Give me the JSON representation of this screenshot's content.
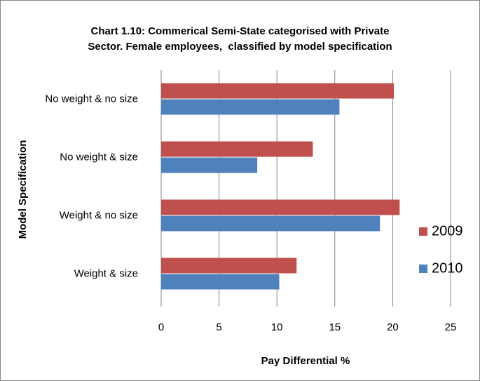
{
  "chart_data": {
    "type": "hbar",
    "title": "Chart 1.10: Commerical Semi-State categorised with Private Sector. Female employees,  classified by model specification",
    "x_label": "Pay Differential %",
    "y_label": "Model Specification",
    "categories": [
      "No weight  & no size",
      "No weight  & size",
      "Weight  & no size",
      "Weight  & size"
    ],
    "series": [
      {
        "name": "2009",
        "color": "#c0504d",
        "values": [
          20.1,
          13.1,
          20.6,
          11.7
        ]
      },
      {
        "name": "2010",
        "color": "#4f81bd",
        "values": [
          15.4,
          8.3,
          18.9,
          10.2
        ]
      }
    ],
    "xlim": [
      0,
      25
    ],
    "xticks": [
      0,
      5,
      10,
      15,
      20,
      25
    ],
    "grid": true,
    "legend": "right"
  }
}
